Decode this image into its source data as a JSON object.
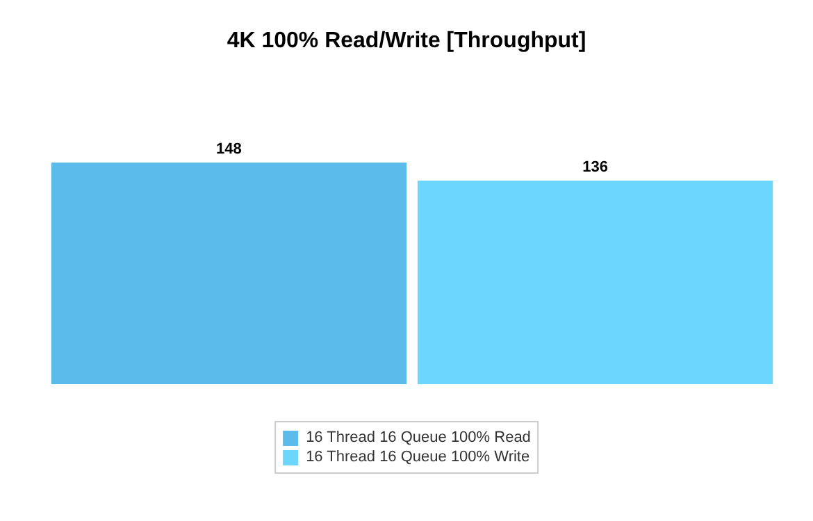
{
  "chart_data": {
    "type": "bar",
    "title": "4K 100% Read/Write [Throughput]",
    "categories": [
      null
    ],
    "series": [
      {
        "name": "16 Thread 16 Queue 100% Read",
        "color": "#5bbcec",
        "values": [
          148
        ]
      },
      {
        "name": "16 Thread 16 Queue 100% Write",
        "color": "#6dd6fd",
        "values": [
          136
        ]
      }
    ],
    "data_labels": true,
    "legend": "bottom"
  }
}
